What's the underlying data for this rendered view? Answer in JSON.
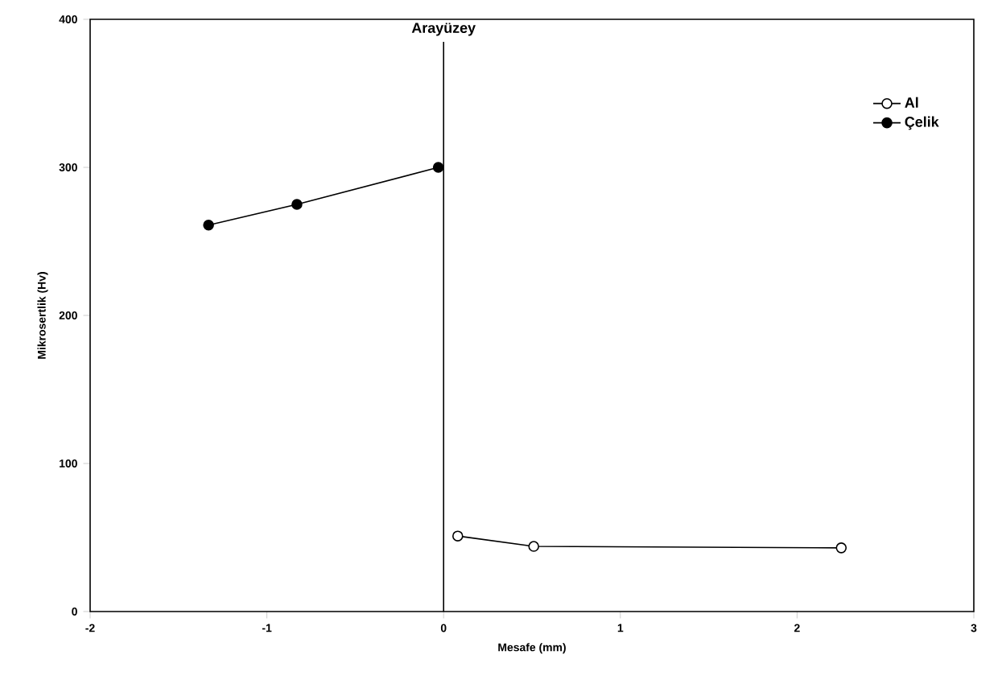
{
  "chart_data": {
    "type": "line",
    "xlabel": "Mesafe (mm)",
    "ylabel": "Mikrosertlik (Hv)",
    "xlim": [
      -2,
      3
    ],
    "xticks": [
      {
        "value": -2,
        "label": "-2"
      },
      {
        "value": -1,
        "label": "-1"
      },
      0,
      1,
      2,
      3
    ],
    "ylim": [
      0,
      400
    ],
    "yticks": [
      0,
      100,
      200,
      300,
      400
    ],
    "grid": false,
    "legend": "top right",
    "ref_lines": [
      {
        "axis": "x",
        "value": 0,
        "label": "Arayüzey",
        "color": "#000000"
      }
    ],
    "series": [
      {
        "name": "Al",
        "color": "#000000",
        "marker": "open circle",
        "x": [
          0.08,
          0.51,
          2.25
        ],
        "values": [
          51,
          44,
          43
        ]
      },
      {
        "name": "Çelik",
        "color": "#000000",
        "marker": "circle",
        "x": [
          -1.33,
          -0.83,
          -0.03
        ],
        "values": [
          261,
          275,
          300
        ]
      }
    ]
  }
}
